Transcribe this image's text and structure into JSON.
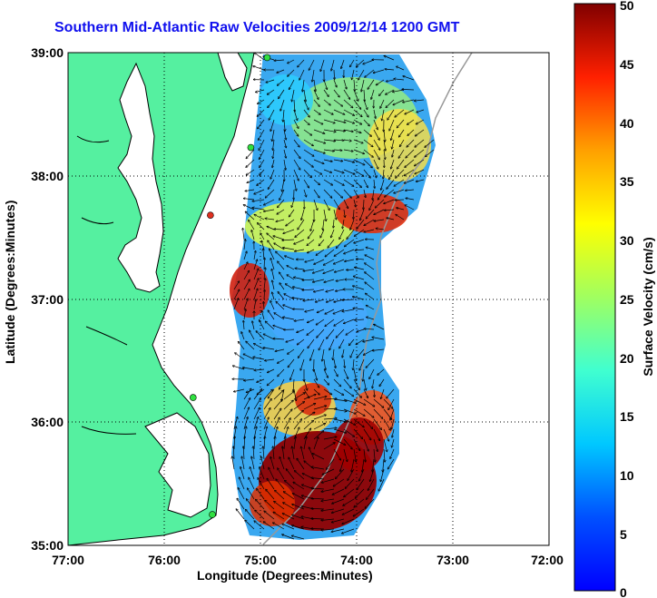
{
  "title": "Southern Mid-Atlantic Raw Velocities 2009/12/14 1200 GMT",
  "xlabel": "Longitude (Degrees:Minutes)",
  "ylabel": "Latitude (Degrees:Minutes)",
  "colorbar": {
    "label": "Surface Velocity (cm/s)",
    "range": [
      0,
      50
    ],
    "ticks": [
      "0",
      "5",
      "10",
      "15",
      "20",
      "25",
      "30",
      "35",
      "40",
      "45",
      "50"
    ],
    "colormap": "jet"
  },
  "axes": {
    "lon_range": [
      -77,
      -72
    ],
    "lat_range": [
      35,
      39
    ],
    "x_ticks": [
      "77:00",
      "76:00",
      "75:00",
      "74:00",
      "73:00",
      "72:00"
    ],
    "y_ticks": [
      "39:00",
      "38:00",
      "37:00",
      "36:00",
      "35:00"
    ],
    "grid": "dotted"
  },
  "colors": {
    "land": "#55f0a0",
    "ocean": "#ffffff",
    "coastline": "#000000",
    "bathymetry": "#999999",
    "arrows": "#000000",
    "title": "#1010ee"
  },
  "stations": [
    {
      "lon": -74.93,
      "lat": 38.96,
      "status": "active"
    },
    {
      "lon": -75.1,
      "lat": 38.23,
      "status": "active"
    },
    {
      "lon": -75.52,
      "lat": 37.68,
      "status": "inactive"
    },
    {
      "lon": -75.7,
      "lat": 36.2,
      "status": "active"
    },
    {
      "lon": -75.5,
      "lat": 35.25,
      "status": "active"
    }
  ]
}
